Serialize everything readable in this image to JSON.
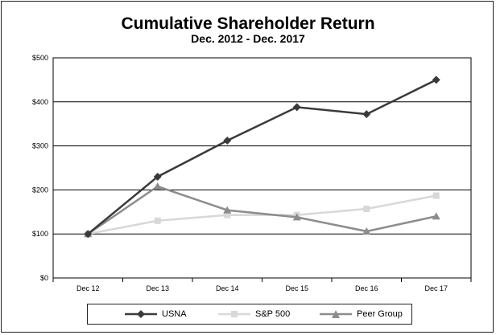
{
  "chart_data": {
    "type": "line",
    "title": "Cumulative Shareholder Return",
    "subtitle": "Dec. 2012 - Dec. 2017",
    "categories": [
      "Dec 12",
      "Dec 13",
      "Dec 14",
      "Dec 15",
      "Dec 16",
      "Dec 17"
    ],
    "ylim": [
      0,
      500
    ],
    "yticks": [
      0,
      100,
      200,
      300,
      400,
      500
    ],
    "ytick_labels": [
      "$0",
      "$100",
      "$200",
      "$300",
      "$400",
      "$500"
    ],
    "grid": true,
    "series": [
      {
        "name": "USNA",
        "values": [
          100,
          230,
          312,
          388,
          372,
          450
        ],
        "color": "#3a3a3a",
        "marker": "diamond"
      },
      {
        "name": "S&P 500",
        "values": [
          100,
          130,
          143,
          143,
          157,
          187
        ],
        "color": "#d8d8d8",
        "marker": "square"
      },
      {
        "name": "Peer Group",
        "values": [
          100,
          208,
          154,
          138,
          106,
          140
        ],
        "color": "#8c8c8c",
        "marker": "triangle"
      }
    ],
    "legend_position": "bottom"
  }
}
